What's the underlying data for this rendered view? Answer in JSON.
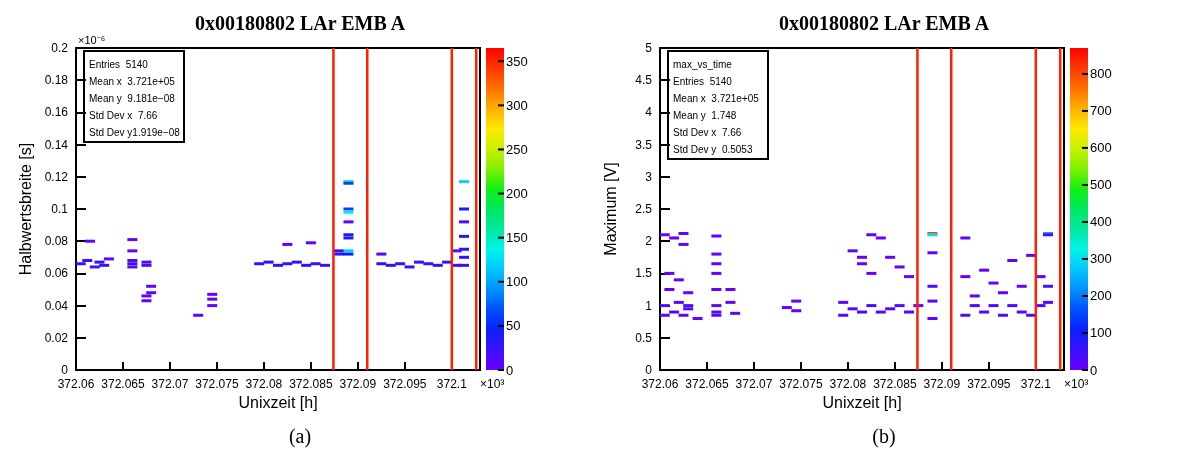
{
  "chart_data": [
    {
      "type": "scatter",
      "title": "0x00180802 LAr EMB A",
      "subtitle": "(a)",
      "xlabel": "Unixzeit [h]",
      "ylabel": "Halbwertsbreite [s]",
      "xlim": [
        372.06,
        372.103
      ],
      "xticks": [
        372.06,
        372.065,
        372.07,
        372.075,
        372.08,
        372.085,
        372.09,
        372.095,
        372.1
      ],
      "ylim": [
        0,
        0.2
      ],
      "yticks": [
        0,
        0.02,
        0.04,
        0.06,
        0.08,
        0.1,
        0.12,
        0.14,
        0.16,
        0.18,
        0.2
      ],
      "clim": [
        0,
        365
      ],
      "cticks": [
        0,
        50,
        100,
        150,
        200,
        250,
        300,
        350
      ],
      "marker": "square",
      "grid": false,
      "series": [
        {
          "x": [
            372.0605,
            372.0612,
            372.0615,
            372.062,
            372.0625,
            372.063,
            372.0635,
            372.066,
            372.066,
            372.066,
            372.066,
            372.066,
            372.0675,
            372.0675,
            372.0675,
            372.0675,
            372.068,
            372.068,
            372.073,
            372.0745,
            372.0745,
            372.0745,
            372.0795,
            372.0805,
            372.0815,
            372.0825,
            372.0825,
            372.0835,
            372.0845,
            372.085,
            372.0855,
            372.0865,
            372.088,
            372.088,
            372.089,
            372.089,
            372.089,
            372.089,
            372.089,
            372.089,
            372.089,
            372.089,
            372.089,
            372.0925,
            372.0925,
            372.0935,
            372.0945,
            372.0955,
            372.0965,
            372.0975,
            372.0985,
            372.0995,
            372.1005,
            372.1005,
            372.1013,
            372.1013,
            372.1013,
            372.1013,
            372.1013,
            372.1013,
            372.1013
          ],
          "values": [
            0.066,
            0.068,
            0.08,
            0.064,
            0.067,
            0.065,
            0.069,
            0.081,
            0.074,
            0.068,
            0.066,
            0.064,
            0.067,
            0.065,
            0.046,
            0.043,
            0.052,
            0.048,
            0.034,
            0.047,
            0.044,
            0.04,
            0.066,
            0.067,
            0.065,
            0.066,
            0.078,
            0.067,
            0.065,
            0.079,
            0.066,
            0.065,
            0.074,
            0.072,
            0.117,
            0.116,
            0.1,
            0.098,
            0.092,
            0.084,
            0.082,
            0.074,
            0.072,
            0.072,
            0.066,
            0.065,
            0.066,
            0.064,
            0.067,
            0.066,
            0.065,
            0.067,
            0.074,
            0.065,
            0.117,
            0.1,
            0.092,
            0.083,
            0.075,
            0.07,
            0.065
          ],
          "cvalues": [
            20,
            20,
            5,
            15,
            30,
            20,
            5,
            5,
            5,
            15,
            20,
            10,
            15,
            10,
            5,
            5,
            5,
            5,
            5,
            5,
            5,
            5,
            25,
            30,
            30,
            25,
            5,
            30,
            25,
            5,
            30,
            25,
            30,
            25,
            150,
            60,
            60,
            130,
            10,
            40,
            40,
            120,
            40,
            5,
            30,
            30,
            25,
            25,
            30,
            25,
            25,
            25,
            5,
            25,
            120,
            40,
            10,
            40,
            40,
            30,
            20
          ]
        }
      ],
      "ref_lines": [
        {
          "axis": "x",
          "value": 372.0874,
          "color": "#ff2000"
        },
        {
          "axis": "x",
          "value": 372.091,
          "color": "#ff2000"
        },
        {
          "axis": "x",
          "value": 372.1,
          "color": "#ff2000"
        },
        {
          "axis": "x",
          "value": 372.1026,
          "color": "#ff2000"
        }
      ],
      "annotations": [
        "×10³",
        "Entries  5140\nMean x  3.721e+05\nMean y  9.181e−08\nStd Dev x  7.66\nStd Dev y1.919e−08",
        "×10⁻⁶"
      ]
    },
    {
      "type": "scatter",
      "title": "0x00180802 LAr EMB A",
      "subtitle": "(b)",
      "xlabel": "Unixzeit [h]",
      "ylabel": "Maximum [V]",
      "xlim": [
        372.06,
        372.103
      ],
      "xticks": [
        372.06,
        372.065,
        372.07,
        372.075,
        372.08,
        372.085,
        372.09,
        372.095,
        372.1
      ],
      "ylim": [
        0,
        5
      ],
      "yticks": [
        0,
        0.5,
        1,
        1.5,
        2,
        2.5,
        3,
        3.5,
        4,
        4.5,
        5
      ],
      "clim": [
        0,
        870
      ],
      "cticks": [
        0,
        100,
        200,
        300,
        400,
        500,
        600,
        700,
        800
      ],
      "marker": "square",
      "grid": false,
      "series": [
        {
          "x": [
            372.0605,
            372.0605,
            372.0605,
            372.061,
            372.061,
            372.0615,
            372.0615,
            372.062,
            372.062,
            372.0625,
            372.0625,
            372.0625,
            372.063,
            372.063,
            372.063,
            372.064,
            372.066,
            372.066,
            372.066,
            372.066,
            372.066,
            372.066,
            372.066,
            372.066,
            372.0675,
            372.0675,
            372.068,
            372.0735,
            372.0745,
            372.0745,
            372.0795,
            372.0795,
            372.0805,
            372.0805,
            372.0815,
            372.0815,
            372.0815,
            372.0825,
            372.0825,
            372.0825,
            372.0835,
            372.0835,
            372.0845,
            372.0845,
            372.0855,
            372.0855,
            372.0865,
            372.0865,
            372.0875,
            372.089,
            372.089,
            372.089,
            372.089,
            372.089,
            372.089,
            372.0925,
            372.0925,
            372.0925,
            372.0935,
            372.0935,
            372.0945,
            372.0945,
            372.0955,
            372.0955,
            372.0965,
            372.0965,
            372.0975,
            372.0975,
            372.0985,
            372.0985,
            372.0995,
            372.0995,
            372.1005,
            372.1005,
            372.1013,
            372.1013,
            372.1013,
            372.1013
          ],
          "values": [
            0.85,
            1.0,
            2.1,
            1.25,
            1.5,
            0.9,
            2.05,
            1.05,
            1.4,
            0.85,
            2.12,
            1.95,
            1.0,
            1.2,
            0.95,
            0.8,
            2.08,
            1.8,
            1.65,
            1.5,
            1.25,
            1.0,
            0.9,
            0.85,
            1.25,
            1.05,
            0.88,
            0.97,
            1.07,
            0.92,
            0.85,
            1.05,
            0.95,
            1.85,
            0.9,
            1.75,
            1.65,
            1.0,
            2.1,
            1.5,
            0.9,
            2.05,
            0.95,
            1.75,
            1.0,
            1.6,
            0.9,
            1.45,
            1.0,
            2.12,
            2.1,
            1.82,
            1.3,
            1.07,
            0.8,
            0.85,
            2.05,
            1.45,
            1.0,
            1.15,
            0.9,
            1.55,
            1.0,
            1.35,
            0.85,
            1.2,
            1.0,
            1.7,
            0.9,
            1.3,
            0.85,
            1.78,
            1.0,
            1.45,
            2.12,
            2.1,
            1.3,
            1.05
          ],
          "cvalues": [
            20,
            30,
            5,
            10,
            5,
            30,
            5,
            20,
            5,
            20,
            5,
            5,
            30,
            10,
            20,
            5,
            10,
            5,
            5,
            5,
            10,
            20,
            20,
            20,
            10,
            10,
            10,
            5,
            5,
            5,
            30,
            20,
            30,
            5,
            30,
            5,
            5,
            30,
            5,
            5,
            30,
            5,
            30,
            5,
            30,
            5,
            30,
            5,
            10,
            800,
            300,
            20,
            40,
            20,
            20,
            30,
            10,
            5,
            30,
            20,
            30,
            5,
            30,
            5,
            30,
            5,
            30,
            5,
            30,
            5,
            30,
            5,
            30,
            5,
            250,
            40,
            40,
            20
          ]
        }
      ],
      "ref_lines": [
        {
          "axis": "x",
          "value": 372.0874,
          "color": "#ff2000"
        },
        {
          "axis": "x",
          "value": 372.091,
          "color": "#ff2000"
        },
        {
          "axis": "x",
          "value": 372.1,
          "color": "#ff2000"
        },
        {
          "axis": "x",
          "value": 372.1026,
          "color": "#ff2000"
        }
      ],
      "annotations": [
        "×10³",
        "max_vs_time\nEntries  5140\nMean x  3.721e+05\nMean y  1.748\nStd Dev x  7.66\nStd Dev y  0.5053"
      ]
    }
  ]
}
